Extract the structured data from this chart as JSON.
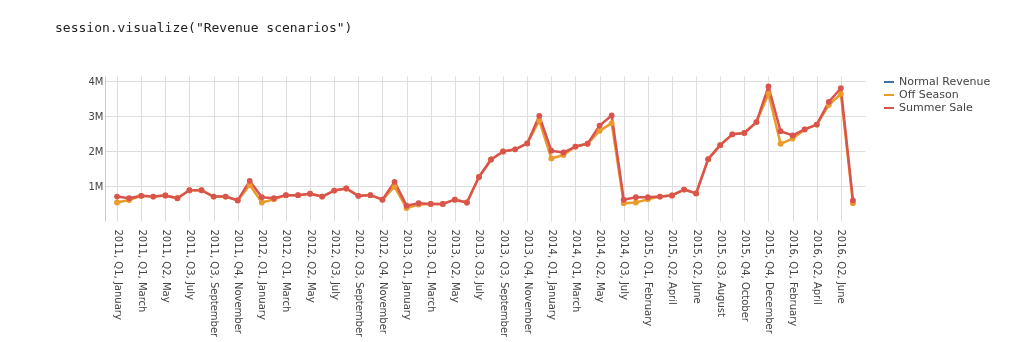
{
  "chart_data": {
    "type": "line",
    "annotations": [
      "session.visualize(\"Revenue scenarios\")"
    ],
    "categories": [
      "2011, Q1, January",
      null,
      "2011, Q1, March",
      null,
      "2011, Q2, May",
      null,
      "2011, Q3, July",
      null,
      "2011, Q3, September",
      null,
      "2011, Q4, November",
      null,
      "2012, Q1, January",
      null,
      "2012, Q1, March",
      null,
      "2012, Q2, May",
      null,
      "2012, Q3, July",
      null,
      "2012, Q3, September",
      null,
      "2012, Q4, November",
      null,
      "2013, Q1, January",
      null,
      "2013, Q1, March",
      null,
      "2013, Q2, May",
      null,
      "2013, Q3, July",
      null,
      "2013, Q3, September",
      null,
      "2013, Q4, November",
      null,
      "2014, Q1, January",
      null,
      "2014, Q1, March",
      null,
      "2014, Q2, May",
      null,
      "2014, Q3, July",
      null,
      "2015, Q1, February",
      null,
      "2015, Q2, April",
      null,
      "2015, Q2, June",
      null,
      "2015, Q3, August",
      null,
      "2015, Q4, October",
      null,
      "2015, Q4, December",
      null,
      "2016, Q1, February",
      null,
      "2016, Q2, April",
      null,
      "2016, Q2, June",
      null
    ],
    "series": [
      {
        "name": "Normal Revenue",
        "color": "#3d74a5",
        "values": [
          null,
          null,
          null,
          null,
          null,
          null,
          null,
          null,
          null,
          null,
          null,
          null,
          null,
          null,
          null,
          null,
          null,
          null,
          null,
          null,
          null,
          null,
          null,
          null,
          null,
          null,
          null,
          null,
          null,
          null,
          null,
          null,
          null,
          null,
          null,
          null,
          null,
          null,
          null,
          null,
          null,
          null,
          null,
          null,
          null,
          null,
          null,
          null,
          null,
          null,
          null,
          null,
          null,
          null,
          null,
          null,
          null,
          null,
          null,
          null,
          null,
          null
        ]
      },
      {
        "name": "Off Season",
        "color": "#eb9b2a",
        "values": [
          530000,
          600000,
          720000,
          700000,
          730000,
          650000,
          880000,
          880000,
          700000,
          700000,
          590000,
          1030000,
          530000,
          620000,
          740000,
          740000,
          780000,
          700000,
          870000,
          930000,
          720000,
          740000,
          610000,
          980000,
          370000,
          470000,
          490000,
          490000,
          610000,
          530000,
          1260000,
          1760000,
          1990000,
          2050000,
          2220000,
          2870000,
          1790000,
          1890000,
          2130000,
          2210000,
          2580000,
          2800000,
          510000,
          530000,
          620000,
          700000,
          730000,
          900000,
          790000,
          1770000,
          2170000,
          2480000,
          2520000,
          2830000,
          3640000,
          2210000,
          2360000,
          2620000,
          2760000,
          3320000,
          3640000,
          510000
        ]
      },
      {
        "name": "Summer Sale",
        "color": "#d9534f",
        "values": [
          700000,
          650000,
          720000,
          700000,
          730000,
          650000,
          880000,
          880000,
          700000,
          700000,
          590000,
          1150000,
          680000,
          650000,
          740000,
          740000,
          780000,
          700000,
          870000,
          930000,
          720000,
          740000,
          610000,
          1120000,
          440000,
          510000,
          490000,
          490000,
          610000,
          530000,
          1260000,
          1760000,
          1990000,
          2050000,
          2220000,
          3010000,
          2010000,
          1960000,
          2130000,
          2210000,
          2730000,
          3020000,
          610000,
          680000,
          680000,
          700000,
          730000,
          900000,
          790000,
          1770000,
          2170000,
          2480000,
          2520000,
          2830000,
          3850000,
          2570000,
          2450000,
          2620000,
          2760000,
          3410000,
          3800000,
          590000
        ]
      }
    ],
    "ylim": [
      0,
      4150000
    ],
    "yticks": [
      {
        "value": 1000000,
        "label": "1M"
      },
      {
        "value": 2000000,
        "label": "2M"
      },
      {
        "value": 3000000,
        "label": "3M"
      },
      {
        "value": 4000000,
        "label": "4M"
      }
    ],
    "grid": true,
    "legend": "right",
    "marker": "circle",
    "line_style": "solid"
  }
}
